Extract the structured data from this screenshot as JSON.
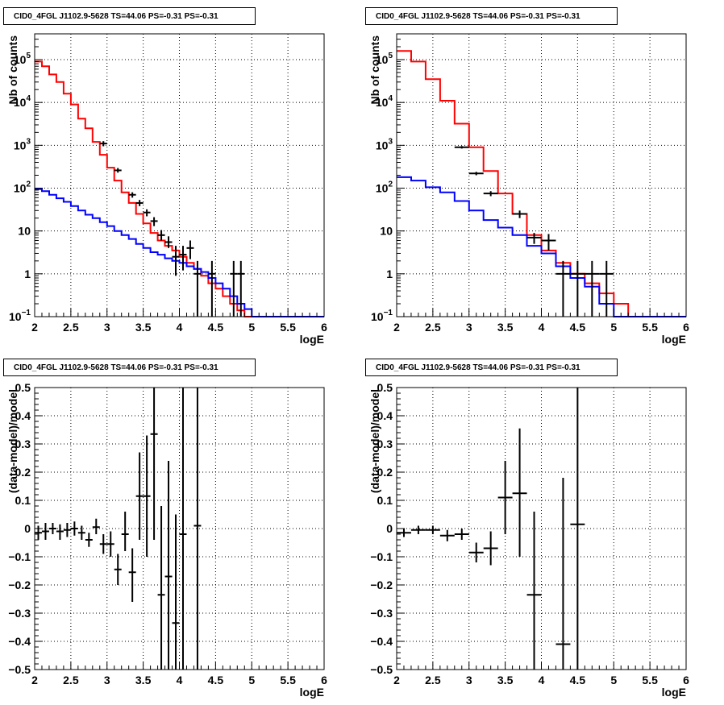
{
  "chart_data": [
    {
      "type": "line",
      "title": "CID0_4FGL J1102.9-5628 TS=44.06 PS=-0.31 PS=-0.31",
      "xlabel": "logE",
      "ylabel": "Nb of counts",
      "xlim": [
        2,
        6
      ],
      "ylim": [
        0.1,
        400000
      ],
      "yscale": "log",
      "grid": true,
      "x_ticks": [
        "2",
        "2.5",
        "3",
        "3.5",
        "4",
        "4.5",
        "5",
        "5.5",
        "6"
      ],
      "y_ticks": [
        {
          "v": 0.1,
          "base": "10",
          "exp": "−1"
        },
        {
          "v": 1,
          "label": "1"
        },
        {
          "v": 10,
          "label": "10"
        },
        {
          "v": 100,
          "base": "10",
          "exp": "2"
        },
        {
          "v": 1000,
          "base": "10",
          "exp": "3"
        },
        {
          "v": 10000,
          "base": "10",
          "exp": "4"
        },
        {
          "v": 100000,
          "base": "10",
          "exp": "5"
        }
      ],
      "bin_width": 0.1,
      "series": [
        {
          "color": "#ff0000",
          "style": "step",
          "edges_start": 2.0,
          "values": [
            90000,
            70000,
            45000,
            30000,
            16000,
            9000,
            4200,
            2500,
            1200,
            600,
            300,
            150,
            80,
            45,
            25,
            15,
            9,
            6,
            4.5,
            3.5,
            2.5,
            1.8,
            1.3,
            0.9,
            0.6,
            0.45,
            0.3,
            0.2,
            0.14,
            0.1,
            0.1,
            0.1,
            0.1,
            0.1,
            0.1,
            0.1,
            0.1,
            0.1,
            0.1,
            0.1
          ]
        },
        {
          "color": "#0000ff",
          "style": "step",
          "edges_start": 2.0,
          "values": [
            95,
            85,
            70,
            58,
            48,
            38,
            30,
            24,
            20,
            16,
            13,
            10,
            8,
            6.5,
            5,
            4,
            3.2,
            2.8,
            2.3,
            2,
            1.8,
            1.5,
            1.3,
            1.1,
            0.8,
            0.6,
            0.45,
            0.3,
            0.2,
            0.15,
            0.1,
            0.1,
            0.1,
            0.1,
            0.1,
            0.1,
            0.1,
            0.1,
            0.1,
            0.1
          ]
        }
      ],
      "points": [
        {
          "x": 2.95,
          "y": 1100,
          "ylo": 950,
          "yhi": 1250
        },
        {
          "x": 3.15,
          "y": 260,
          "ylo": 230,
          "yhi": 295
        },
        {
          "x": 3.35,
          "y": 70,
          "ylo": 60,
          "yhi": 80
        },
        {
          "x": 3.45,
          "y": 45,
          "ylo": 38,
          "yhi": 53
        },
        {
          "x": 3.55,
          "y": 27,
          "ylo": 22,
          "yhi": 32
        },
        {
          "x": 3.65,
          "y": 17,
          "ylo": 13,
          "yhi": 21
        },
        {
          "x": 3.75,
          "y": 8,
          "ylo": 6,
          "yhi": 10.5
        },
        {
          "x": 3.85,
          "y": 5.5,
          "ylo": 4,
          "yhi": 7.5
        },
        {
          "x": 3.95,
          "y": 2.5,
          "ylo": 0.9,
          "yhi": 4.5
        },
        {
          "x": 4.05,
          "y": 2.8,
          "ylo": 1.2,
          "yhi": 4.5
        },
        {
          "x": 4.15,
          "y": 4,
          "ylo": 2.2,
          "yhi": 6
        },
        {
          "x": 4.25,
          "y": 1,
          "ylo": 0.1,
          "yhi": 2
        },
        {
          "x": 4.45,
          "y": 1,
          "ylo": 0.1,
          "yhi": 2
        },
        {
          "x": 4.75,
          "y": 1,
          "ylo": 0.1,
          "yhi": 2
        },
        {
          "x": 4.85,
          "y": 1,
          "ylo": 0.1,
          "yhi": 2
        }
      ]
    },
    {
      "type": "line",
      "title": "CID0_4FGL J1102.9-5628 TS=44.06 PS=-0.31 PS=-0.31",
      "xlabel": "logE",
      "ylabel": "Nb of counts",
      "xlim": [
        2,
        6
      ],
      "ylim": [
        0.1,
        400000
      ],
      "yscale": "log",
      "grid": true,
      "x_ticks": [
        "2",
        "2.5",
        "3",
        "3.5",
        "4",
        "4.5",
        "5",
        "5.5",
        "6"
      ],
      "y_ticks": [
        {
          "v": 0.1,
          "base": "10",
          "exp": "−1"
        },
        {
          "v": 1,
          "label": "1"
        },
        {
          "v": 10,
          "label": "10"
        },
        {
          "v": 100,
          "base": "10",
          "exp": "2"
        },
        {
          "v": 1000,
          "base": "10",
          "exp": "3"
        },
        {
          "v": 10000,
          "base": "10",
          "exp": "4"
        },
        {
          "v": 100000,
          "base": "10",
          "exp": "5"
        }
      ],
      "bin_width": 0.2,
      "series": [
        {
          "color": "#ff0000",
          "style": "step",
          "edges_start": 2.0,
          "values": [
            160000,
            90000,
            35000,
            11000,
            3200,
            900,
            250,
            75,
            25,
            8,
            3.5,
            1.8,
            1,
            0.6,
            0.35,
            0.2,
            0.1,
            0.1,
            0.1,
            0.1
          ]
        },
        {
          "color": "#0000ff",
          "style": "step",
          "edges_start": 2.0,
          "values": [
            180,
            150,
            105,
            80,
            50,
            30,
            18,
            12,
            8,
            4.5,
            3,
            1.5,
            0.8,
            0.5,
            0.2,
            0.1,
            0.1,
            0.1,
            0.1,
            0.1
          ]
        }
      ],
      "points": [
        {
          "x": 2.9,
          "y": 900,
          "ylo": 840,
          "yhi": 960
        },
        {
          "x": 3.1,
          "y": 220,
          "ylo": 200,
          "yhi": 240
        },
        {
          "x": 3.3,
          "y": 75,
          "ylo": 65,
          "yhi": 85
        },
        {
          "x": 3.7,
          "y": 25,
          "ylo": 20,
          "yhi": 30
        },
        {
          "x": 3.9,
          "y": 7,
          "ylo": 5,
          "yhi": 9
        },
        {
          "x": 4.1,
          "y": 6,
          "ylo": 3.5,
          "yhi": 8.5
        },
        {
          "x": 4.3,
          "y": 1,
          "ylo": 0.1,
          "yhi": 2
        },
        {
          "x": 4.5,
          "y": 1,
          "ylo": 0.1,
          "yhi": 2
        },
        {
          "x": 4.7,
          "y": 1,
          "ylo": 0.1,
          "yhi": 2
        },
        {
          "x": 4.9,
          "y": 1,
          "ylo": 0.1,
          "yhi": 2
        }
      ]
    },
    {
      "type": "scatter",
      "title": "CID0_4FGL J1102.9-5628 TS=44.06 PS=-0.31 PS=-0.31",
      "xlabel": "logE",
      "ylabel": "(data-model)/model",
      "xlim": [
        2,
        6
      ],
      "ylim": [
        -0.5,
        0.5
      ],
      "yscale": "linear",
      "grid": true,
      "x_ticks": [
        "2",
        "2.5",
        "3",
        "3.5",
        "4",
        "4.5",
        "5",
        "5.5",
        "6"
      ],
      "y_ticks": [
        {
          "v": -0.5,
          "label": "−0.5"
        },
        {
          "v": -0.4,
          "label": "−0.4"
        },
        {
          "v": -0.3,
          "label": "−0.3"
        },
        {
          "v": -0.2,
          "label": "−0.2"
        },
        {
          "v": -0.1,
          "label": "−0.1"
        },
        {
          "v": 0,
          "label": "0"
        },
        {
          "v": 0.1,
          "label": "0.1"
        },
        {
          "v": 0.2,
          "label": "0.2"
        },
        {
          "v": 0.3,
          "label": "0.3"
        },
        {
          "v": 0.4,
          "label": "0.4"
        },
        {
          "v": 0.5,
          "label": "0.5"
        }
      ],
      "xerr": 0.05,
      "points": [
        {
          "x": 2.05,
          "y": -0.015,
          "ylo": -0.04,
          "yhi": 0.01
        },
        {
          "x": 2.15,
          "y": -0.01,
          "ylo": -0.04,
          "yhi": 0.02
        },
        {
          "x": 2.25,
          "y": 0.0,
          "ylo": -0.02,
          "yhi": 0.02
        },
        {
          "x": 2.35,
          "y": -0.01,
          "ylo": -0.04,
          "yhi": 0.015
        },
        {
          "x": 2.45,
          "y": -0.005,
          "ylo": -0.03,
          "yhi": 0.02
        },
        {
          "x": 2.55,
          "y": 0.0,
          "ylo": -0.025,
          "yhi": 0.025
        },
        {
          "x": 2.65,
          "y": -0.015,
          "ylo": -0.04,
          "yhi": 0.01
        },
        {
          "x": 2.75,
          "y": -0.04,
          "ylo": -0.065,
          "yhi": -0.015
        },
        {
          "x": 2.85,
          "y": 0.005,
          "ylo": -0.02,
          "yhi": 0.035
        },
        {
          "x": 2.95,
          "y": -0.055,
          "ylo": -0.09,
          "yhi": -0.02
        },
        {
          "x": 3.05,
          "y": -0.055,
          "ylo": -0.1,
          "yhi": -0.01
        },
        {
          "x": 3.15,
          "y": -0.145,
          "ylo": -0.2,
          "yhi": -0.09
        },
        {
          "x": 3.25,
          "y": -0.02,
          "ylo": -0.08,
          "yhi": 0.06
        },
        {
          "x": 3.35,
          "y": -0.155,
          "ylo": -0.26,
          "yhi": -0.07
        },
        {
          "x": 3.45,
          "y": 0.115,
          "ylo": -0.04,
          "yhi": 0.27
        },
        {
          "x": 3.55,
          "y": 0.115,
          "ylo": -0.1,
          "yhi": 0.33
        },
        {
          "x": 3.65,
          "y": 0.335,
          "ylo": -0.04,
          "yhi": 0.5
        },
        {
          "x": 3.75,
          "y": -0.235,
          "ylo": -0.5,
          "yhi": 0.08
        },
        {
          "x": 3.85,
          "y": -0.17,
          "ylo": -0.5,
          "yhi": 0.24
        },
        {
          "x": 3.95,
          "y": -0.335,
          "ylo": -0.5,
          "yhi": 0.05
        },
        {
          "x": 4.05,
          "y": -0.02,
          "ylo": -0.5,
          "yhi": 0.5
        },
        {
          "x": 4.25,
          "y": 0.01,
          "ylo": -0.5,
          "yhi": 0.5
        }
      ]
    },
    {
      "type": "scatter",
      "title": "CID0_4FGL J1102.9-5628 TS=44.06 PS=-0.31 PS=-0.31",
      "xlabel": "logE",
      "ylabel": "(data-model)/model",
      "xlim": [
        2,
        6
      ],
      "ylim": [
        -0.5,
        0.5
      ],
      "yscale": "linear",
      "grid": true,
      "x_ticks": [
        "2",
        "2.5",
        "3",
        "3.5",
        "4",
        "4.5",
        "5",
        "5.5",
        "6"
      ],
      "y_ticks": [
        {
          "v": -0.5,
          "label": "−0.5"
        },
        {
          "v": -0.4,
          "label": "−0.4"
        },
        {
          "v": -0.3,
          "label": "−0.3"
        },
        {
          "v": -0.2,
          "label": "−0.2"
        },
        {
          "v": -0.1,
          "label": "−0.1"
        },
        {
          "v": 0,
          "label": "0"
        },
        {
          "v": 0.1,
          "label": "0.1"
        },
        {
          "v": 0.2,
          "label": "0.2"
        },
        {
          "v": 0.3,
          "label": "0.3"
        },
        {
          "v": 0.4,
          "label": "0.4"
        },
        {
          "v": 0.5,
          "label": "0.5"
        }
      ],
      "xerr": 0.1,
      "points": [
        {
          "x": 2.1,
          "y": -0.015,
          "ylo": -0.03,
          "yhi": 0.0
        },
        {
          "x": 2.3,
          "y": -0.005,
          "ylo": -0.02,
          "yhi": 0.01
        },
        {
          "x": 2.5,
          "y": -0.005,
          "ylo": -0.02,
          "yhi": 0.01
        },
        {
          "x": 2.7,
          "y": -0.025,
          "ylo": -0.045,
          "yhi": -0.005
        },
        {
          "x": 2.9,
          "y": -0.02,
          "ylo": -0.04,
          "yhi": 0.0
        },
        {
          "x": 3.1,
          "y": -0.085,
          "ylo": -0.12,
          "yhi": -0.05
        },
        {
          "x": 3.3,
          "y": -0.07,
          "ylo": -0.13,
          "yhi": -0.01
        },
        {
          "x": 3.5,
          "y": 0.11,
          "ylo": -0.02,
          "yhi": 0.24
        },
        {
          "x": 3.7,
          "y": 0.125,
          "ylo": -0.1,
          "yhi": 0.355
        },
        {
          "x": 3.9,
          "y": -0.235,
          "ylo": -0.5,
          "yhi": 0.06
        },
        {
          "x": 4.3,
          "y": -0.41,
          "ylo": -0.5,
          "yhi": 0.18
        },
        {
          "x": 4.5,
          "y": 0.015,
          "ylo": -0.5,
          "yhi": 0.5
        }
      ]
    }
  ]
}
